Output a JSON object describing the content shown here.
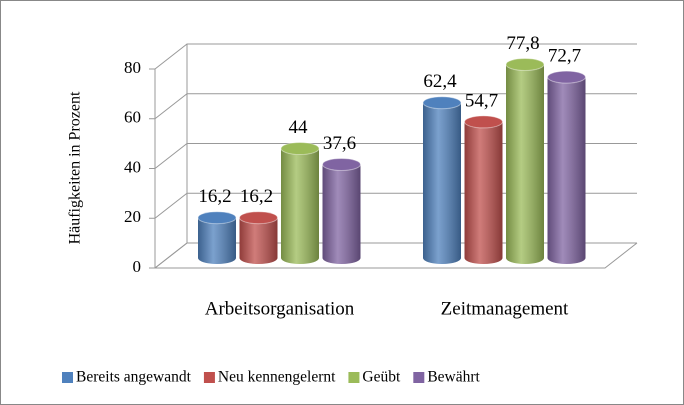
{
  "chart_data": {
    "type": "bar3d",
    "y_axis_label": "Häufigkeiten in Prozent",
    "categories": [
      "Arbeitsorganisation",
      "Zeitmanagement"
    ],
    "series": [
      {
        "name": "Bereits angewandt",
        "color": "#4f81bd",
        "values": [
          16.2,
          62.4
        ],
        "value_labels": [
          "16,2",
          "62,4"
        ]
      },
      {
        "name": "Neu kennengelernt",
        "color": "#c0504d",
        "values": [
          16.2,
          54.7
        ],
        "value_labels": [
          "16,2",
          "54,7"
        ]
      },
      {
        "name": "Geübt",
        "color": "#9bbb59",
        "values": [
          44,
          77.8
        ],
        "value_labels": [
          "44",
          "77,8"
        ]
      },
      {
        "name": "Bewährt",
        "color": "#8064a2",
        "values": [
          37.6,
          72.7
        ],
        "value_labels": [
          "37,6",
          "72,7"
        ]
      }
    ],
    "ylim": [
      0,
      80
    ],
    "yticks": [
      0,
      20,
      40,
      60,
      80
    ],
    "grid": true,
    "legend": "bottom"
  }
}
